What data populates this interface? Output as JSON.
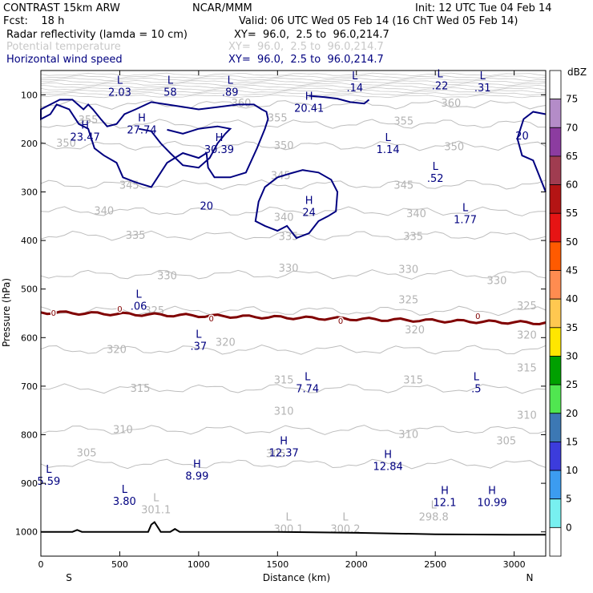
{
  "header": {
    "model": "CONTRAST 15km ARW",
    "center": "NCAR/MMM",
    "init": "Init: 12 UTC Tue 04 Feb 14",
    "fcst": "Fcst:    18 h",
    "valid": "Valid: 06 UTC Wed 05 Feb 14 (16 ChT Wed 05 Feb 14)"
  },
  "legend": [
    {
      "label": "Radar reflectivity (lamda = 10 cm)",
      "xy": "XY=  96.0,  2.5 to  96.0,214.7",
      "color": "#000000"
    },
    {
      "label": "Potential temperature",
      "xy": "XY=  96.0,  2.5 to  96.0,214.7",
      "color": "#c8c8c8"
    },
    {
      "label": "Horizontal wind speed",
      "xy": "XY=  96.0,  2.5 to  96.0,214.7",
      "color": "#000080"
    }
  ],
  "chart_data": {
    "type": "cross-section",
    "title": "Radar reflectivity / Potential temperature / Horizontal wind speed",
    "xlabel": "Distance (km)",
    "ylabel": "Pressure (hPa)",
    "xlim": [
      0,
      3200
    ],
    "ylim": [
      1050,
      50
    ],
    "x_ticks": [
      0,
      500,
      1000,
      1500,
      2000,
      2500,
      3000
    ],
    "y_ticks": [
      100,
      200,
      300,
      400,
      500,
      600,
      700,
      800,
      900,
      1000
    ],
    "x_end_labels": {
      "left": "S",
      "right": "N"
    },
    "theta_levels": [
      {
        "value": "305",
        "p": 860
      },
      {
        "value": "310",
        "p": 790
      },
      {
        "value": "315",
        "p": 705
      },
      {
        "value": "320",
        "p": 625
      },
      {
        "value": "325",
        "p": 545
      },
      {
        "value": "330",
        "p": 470
      },
      {
        "value": "335",
        "p": 390
      },
      {
        "value": "340",
        "p": 340
      },
      {
        "value": "345",
        "p": 285
      },
      {
        "value": "350",
        "p": 205
      },
      {
        "value": "355",
        "p": 160
      },
      {
        "value": "360",
        "p": 120
      }
    ],
    "theta_labels": [
      {
        "text": "355",
        "x": 300,
        "p": 152
      },
      {
        "text": "350",
        "x": 160,
        "p": 200
      },
      {
        "text": "345",
        "x": 560,
        "p": 287
      },
      {
        "text": "340",
        "x": 400,
        "p": 340
      },
      {
        "text": "335",
        "x": 600,
        "p": 390
      },
      {
        "text": "330",
        "x": 800,
        "p": 473
      },
      {
        "text": "325",
        "x": 720,
        "p": 545
      },
      {
        "text": "320",
        "x": 480,
        "p": 625
      },
      {
        "text": "320",
        "x": 1170,
        "p": 610
      },
      {
        "text": "315",
        "x": 630,
        "p": 705
      },
      {
        "text": "310",
        "x": 520,
        "p": 790
      },
      {
        "text": "360",
        "x": 1270,
        "p": 118
      },
      {
        "text": "355",
        "x": 1500,
        "p": 148
      },
      {
        "text": "350",
        "x": 1540,
        "p": 205
      },
      {
        "text": "345",
        "x": 1520,
        "p": 267
      },
      {
        "text": "340",
        "x": 1540,
        "p": 353
      },
      {
        "text": "335",
        "x": 1570,
        "p": 392
      },
      {
        "text": "330",
        "x": 1570,
        "p": 458
      },
      {
        "text": "315",
        "x": 1540,
        "p": 688
      },
      {
        "text": "310",
        "x": 1540,
        "p": 752
      },
      {
        "text": "305",
        "x": 1490,
        "p": 840
      },
      {
        "text": "360",
        "x": 2600,
        "p": 118
      },
      {
        "text": "355",
        "x": 2300,
        "p": 155
      },
      {
        "text": "350",
        "x": 2620,
        "p": 208
      },
      {
        "text": "345",
        "x": 2300,
        "p": 287
      },
      {
        "text": "340",
        "x": 2380,
        "p": 345
      },
      {
        "text": "335",
        "x": 2360,
        "p": 392
      },
      {
        "text": "330",
        "x": 2330,
        "p": 460
      },
      {
        "text": "325",
        "x": 2330,
        "p": 523
      },
      {
        "text": "320",
        "x": 2370,
        "p": 585
      },
      {
        "text": "315",
        "x": 2360,
        "p": 688
      },
      {
        "text": "310",
        "x": 2330,
        "p": 800
      },
      {
        "text": "305",
        "x": 2950,
        "p": 813
      },
      {
        "text": "330",
        "x": 2890,
        "p": 483
      },
      {
        "text": "325",
        "x": 3080,
        "p": 535
      },
      {
        "text": "320",
        "x": 3080,
        "p": 595
      },
      {
        "text": "315",
        "x": 3080,
        "p": 663
      },
      {
        "text": "310",
        "x": 3080,
        "p": 760
      },
      {
        "text": "305",
        "x": 290,
        "p": 838
      }
    ],
    "theta_hl": [
      {
        "text": "L",
        "value": "301.1",
        "x": 730,
        "p": 950
      },
      {
        "text": "L",
        "value": "300.1",
        "x": 1570,
        "p": 990
      },
      {
        "text": "L",
        "value": "300.2",
        "x": 1930,
        "p": 990
      },
      {
        "text": "L",
        "value": "298.8",
        "x": 2490,
        "p": 965
      }
    ],
    "wind_contour": "20",
    "wind_contour_labels": [
      {
        "text": "20",
        "x": 1050,
        "p": 330
      },
      {
        "text": "20",
        "x": 3050,
        "p": 185
      }
    ],
    "wind_extrema": [
      {
        "type": "L",
        "value": "2.03",
        "x": 500,
        "p": 77
      },
      {
        "type": "L",
        "value": "58",
        "x": 820,
        "p": 77
      },
      {
        "type": "L",
        "value": ".89",
        "x": 1200,
        "p": 77
      },
      {
        "type": "L",
        "value": ".14",
        "x": 1990,
        "p": 68
      },
      {
        "type": "L",
        "value": ".22",
        "x": 2530,
        "p": 64
      },
      {
        "type": "L",
        "value": ".31",
        "x": 2800,
        "p": 68
      },
      {
        "type": "H",
        "value": "20.41",
        "x": 1700,
        "p": 110
      },
      {
        "type": "H",
        "value": "27.74",
        "x": 640,
        "p": 155
      },
      {
        "type": "H",
        "value": "23.47",
        "x": 280,
        "p": 170
      },
      {
        "type": "H",
        "value": "30.39",
        "x": 1130,
        "p": 195
      },
      {
        "type": "L",
        "value": "1.14",
        "x": 2200,
        "p": 195
      },
      {
        "type": "L",
        "value": ".52",
        "x": 2500,
        "p": 255
      },
      {
        "type": "H",
        "value": "24",
        "x": 1700,
        "p": 325
      },
      {
        "type": "L",
        "value": "1.77",
        "x": 2690,
        "p": 340
      },
      {
        "type": "L",
        "value": ".06",
        "x": 620,
        "p": 518
      },
      {
        "type": "L",
        "value": ".37",
        "x": 1000,
        "p": 600
      },
      {
        "type": "L",
        "value": "7.74",
        "x": 1690,
        "p": 688
      },
      {
        "type": "L",
        "value": ".5",
        "x": 2760,
        "p": 688
      },
      {
        "type": "H",
        "value": "12.37",
        "x": 1540,
        "p": 820
      },
      {
        "type": "H",
        "value": "12.84",
        "x": 2200,
        "p": 848
      },
      {
        "type": "H",
        "value": "8.99",
        "x": 990,
        "p": 868
      },
      {
        "type": "L",
        "value": "5.59",
        "x": 50,
        "p": 878
      },
      {
        "type": "L",
        "value": "3.80",
        "x": 530,
        "p": 920
      },
      {
        "type": "H",
        "value": "12.1",
        "x": 2560,
        "p": 922
      },
      {
        "type": "H",
        "value": "10.99",
        "x": 2860,
        "p": 922
      }
    ],
    "freezing_level": {
      "label": "0",
      "p": 560,
      "color": "#800000"
    },
    "freezing_labels": [
      {
        "x": 80,
        "p": 548
      },
      {
        "x": 500,
        "p": 540
      },
      {
        "x": 1080,
        "p": 560
      },
      {
        "x": 1900,
        "p": 565
      },
      {
        "x": 2770,
        "p": 555
      }
    ],
    "terrain": [
      [
        0,
        1000
      ],
      [
        200,
        1000
      ],
      [
        230,
        996
      ],
      [
        260,
        1000
      ],
      [
        680,
        1000
      ],
      [
        700,
        985
      ],
      [
        720,
        980
      ],
      [
        740,
        990
      ],
      [
        760,
        1000
      ],
      [
        820,
        1000
      ],
      [
        850,
        994
      ],
      [
        880,
        1000
      ],
      [
        1500,
        1000
      ],
      [
        2000,
        1002
      ],
      [
        2500,
        1005
      ],
      [
        3000,
        1006
      ],
      [
        3200,
        1006
      ]
    ],
    "colorbar": {
      "title": "dBZ",
      "levels": [
        "75",
        "70",
        "65",
        "60",
        "55",
        "50",
        "45",
        "40",
        "35",
        "30",
        "25",
        "20",
        "15",
        "10",
        "5",
        "0"
      ],
      "colors": [
        "#ffffff",
        "#b48cc8",
        "#8c3ca0",
        "#a03c50",
        "#b41414",
        "#e61414",
        "#ff5a00",
        "#ff8c50",
        "#ffc850",
        "#ffe600",
        "#00a000",
        "#50e650",
        "#3c78b4",
        "#3c3cdc",
        "#3c9cf0",
        "#78f0f0",
        "#ffffff"
      ]
    }
  }
}
